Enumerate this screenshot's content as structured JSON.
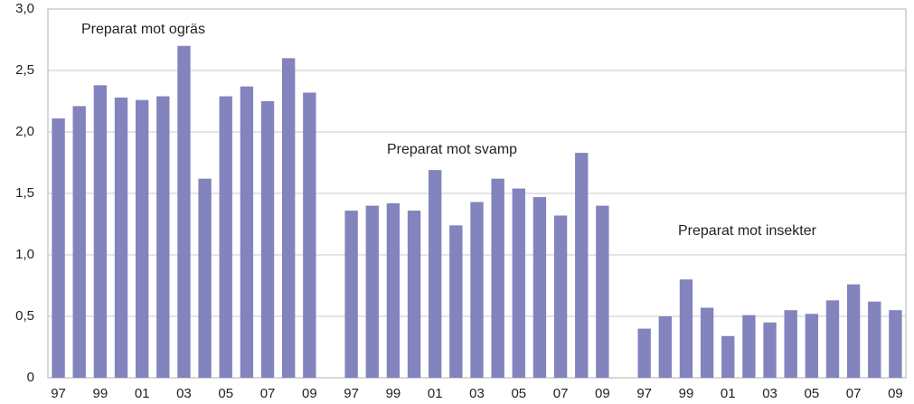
{
  "chart_data": {
    "type": "bar",
    "categories": [
      "97",
      null,
      "99",
      null,
      "01",
      null,
      "03",
      null,
      "05",
      null,
      "07",
      null,
      "09",
      null,
      "97",
      null,
      "99",
      null,
      "01",
      null,
      "03",
      null,
      "05",
      null,
      "07",
      null,
      "09",
      null,
      "97",
      null,
      "99",
      null,
      "01",
      null,
      "03",
      null,
      "05",
      null,
      "07",
      null,
      "09"
    ],
    "values": [
      2.11,
      2.21,
      2.38,
      2.28,
      2.26,
      2.29,
      2.7,
      1.62,
      2.29,
      2.37,
      2.25,
      2.6,
      2.32,
      null,
      1.36,
      1.4,
      1.42,
      1.36,
      1.69,
      1.24,
      1.43,
      1.62,
      1.54,
      1.47,
      1.32,
      1.83,
      1.4,
      null,
      0.4,
      0.5,
      0.8,
      0.57,
      0.34,
      0.51,
      0.45,
      0.55,
      0.52,
      0.63,
      0.76,
      0.62,
      0.55
    ],
    "color": "#8383bd",
    "ylim": [
      0,
      3.0
    ],
    "yticks": [
      0,
      {
        "value": 0.5,
        "label": "0,5"
      },
      {
        "value": 1.0,
        "label": "1,0"
      },
      {
        "value": 1.5,
        "label": "1,5"
      },
      {
        "value": 2.0,
        "label": "2,0"
      },
      {
        "value": 2.5,
        "label": "2,5"
      },
      {
        "value": 3.0,
        "label": "3,0"
      }
    ],
    "grid": true,
    "annotations": [
      "Preparat mot ogräs",
      "Preparat mot svamp",
      "Preparat mot insekter"
    ]
  }
}
